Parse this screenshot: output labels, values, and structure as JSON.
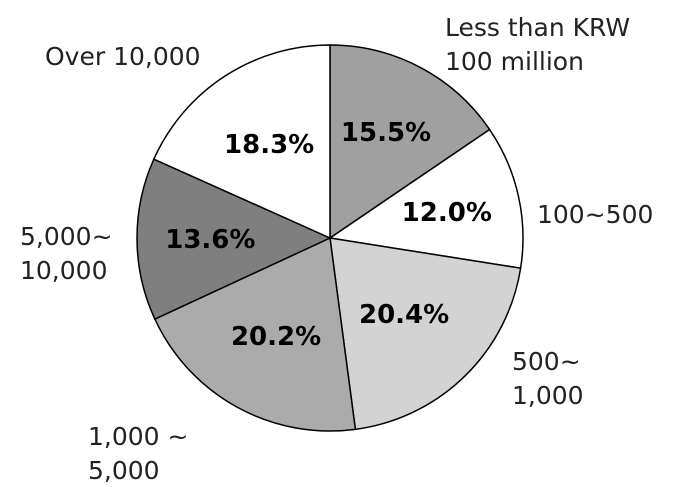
{
  "chart_data": {
    "type": "pie",
    "title": "",
    "categories": [
      "Less than KRW 100 million",
      "100~500",
      "500~ 1,000",
      "1,000 ~ 5,000",
      "5,000~ 10,000",
      "Over 10,000"
    ],
    "category_lines": [
      [
        "Less than KRW",
        "100 million"
      ],
      [
        "100~500"
      ],
      [
        "500~",
        "1,000"
      ],
      [
        "1,000 ~",
        "5,000"
      ],
      [
        "5,000~",
        "10,000"
      ],
      [
        "Over 10,000"
      ]
    ],
    "values": [
      15.5,
      12.0,
      20.4,
      20.2,
      13.6,
      18.3
    ],
    "value_labels": [
      "15.5%",
      "12.0%",
      "20.4%",
      "20.2%",
      "13.6%",
      "18.3%"
    ],
    "colors": [
      "#a0a0a0",
      "#ffffff",
      "#d3d3d3",
      "#ababab",
      "#7f7f7f",
      "#ffffff"
    ],
    "start": "12 o'clock",
    "direction": "clockwise",
    "legend": "none"
  }
}
